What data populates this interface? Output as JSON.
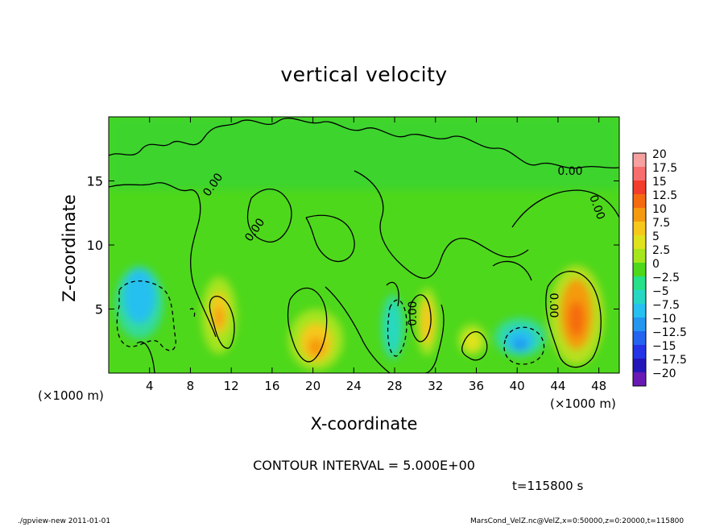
{
  "title": "vertical velocity",
  "xlabel": "X-coordinate",
  "ylabel": "Z-coordinate",
  "x_unit": "(×1000 m)",
  "y_unit": "(×1000 m)",
  "contour_interval": "CONTOUR INTERVAL = 5.000E+00",
  "time_label": "t=115800 s",
  "footer_left": "./gpview-new  2011-01-01",
  "footer_right": "MarsCond_VelZ.nc@VelZ,x=0:50000,z=0:20000,t=115800",
  "chart_data": {
    "type": "heatmap",
    "title": "vertical velocity",
    "xlabel": "X-coordinate",
    "ylabel": "Z-coordinate",
    "xlim": [
      0,
      50
    ],
    "ylim": [
      0,
      20
    ],
    "x_ticks": [
      4,
      8,
      12,
      16,
      20,
      24,
      28,
      32,
      36,
      40,
      44,
      48
    ],
    "y_ticks": [
      5,
      10,
      15
    ],
    "contour_labels": [
      "0.00",
      "0.00",
      "0.00",
      "0.00",
      "0.00",
      "0.00"
    ],
    "colorbar": {
      "min": -20,
      "max": 20,
      "ticks": [
        "20",
        "17.5",
        "15",
        "12.5",
        "10",
        "7.5",
        "5",
        "2.5",
        "0",
        "-2.5",
        "-5",
        "-7.5",
        "-10",
        "-12.5",
        "-15",
        "-17.5",
        "-20"
      ],
      "colors": [
        "#f7a0a0",
        "#f76e6e",
        "#f23c2c",
        "#f56a10",
        "#f59a10",
        "#f6c81c",
        "#e0e21c",
        "#a6e61c",
        "#4ed81c",
        "#26e08a",
        "#26d8c4",
        "#28c0f0",
        "#2496f0",
        "#2464f0",
        "#2434e6",
        "#2416b8",
        "#6a1ab4"
      ]
    },
    "features": [
      {
        "x": 3.0,
        "z": 6.0,
        "value": -6.5
      },
      {
        "x": 10.8,
        "z": 4.7,
        "value": 8.0
      },
      {
        "x": 20.3,
        "z": 2.4,
        "value": 8.5
      },
      {
        "x": 27.8,
        "z": 3.5,
        "value": -5.5
      },
      {
        "x": 31.2,
        "z": 4.0,
        "value": 6.5
      },
      {
        "x": 35.6,
        "z": 2.5,
        "value": 5.0
      },
      {
        "x": 40.3,
        "z": 2.6,
        "value": -7.0
      },
      {
        "x": 45.8,
        "z": 4.6,
        "value": 10.0
      }
    ]
  }
}
